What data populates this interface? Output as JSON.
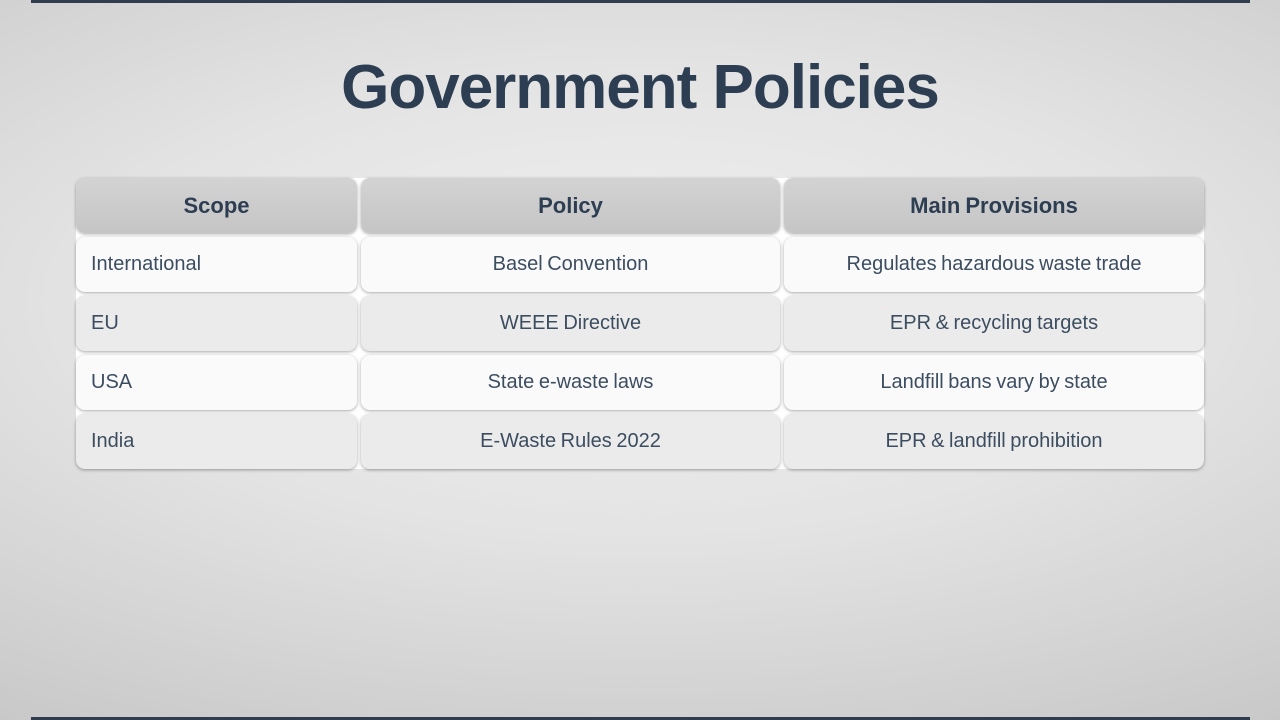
{
  "slide": {
    "title": "Government Policies"
  },
  "table": {
    "columns": [
      "Scope",
      "Policy",
      "Main Provisions"
    ],
    "rows": [
      [
        "International",
        "Basel Convention",
        "Regulates hazardous waste trade"
      ],
      [
        "EU",
        "WEEE Directive",
        "EPR & recycling targets"
      ],
      [
        "USA",
        "State e-waste laws",
        "Landfill bans vary by state"
      ],
      [
        "India",
        "E-Waste Rules 2022",
        "EPR & landfill prohibition"
      ]
    ]
  },
  "theme": {
    "accent_bar": "#2f3d4f",
    "title_color": "#2d3e52",
    "text_color": "#3c4d60",
    "header_bg_top": "#d3d3d3",
    "header_bg_bottom": "#c5c5c5",
    "row_bg": "#fafafa",
    "row_alt_bg": "#ebebeb",
    "table_gap_bg": "#ffffff"
  }
}
